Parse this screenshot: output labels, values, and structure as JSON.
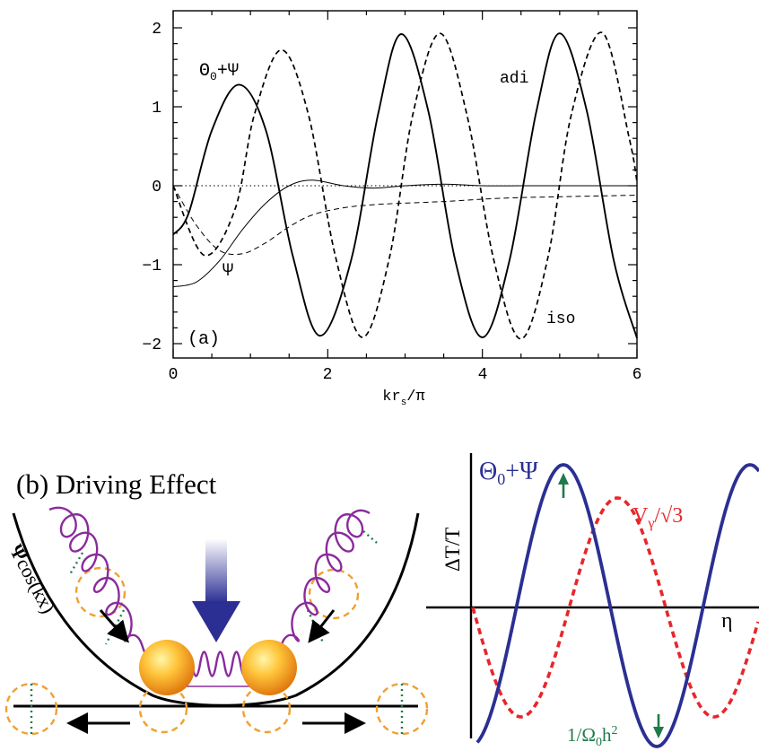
{
  "panel_a": {
    "chart_data": {
      "type": "line",
      "xlabel_main": "kr",
      "xlabel_sub": "s",
      "xlabel_tail": "/π",
      "xlim": [
        0,
        6
      ],
      "ylim": [
        -2.2,
        2.2
      ],
      "x_ticks": [
        "0",
        "2",
        "4",
        "6"
      ],
      "y_ticks": [
        "2",
        "1",
        "0",
        "−1",
        "−2"
      ],
      "panel_label": "(a)",
      "annotations": {
        "theta_main": "Θ",
        "theta_sub": "0",
        "theta_tail": "+Ψ",
        "psi": "Ψ",
        "adi": "adi",
        "iso": "iso"
      },
      "series": [
        {
          "style": "solid-thick",
          "x": [
            0,
            0.2,
            0.5,
            0.85,
            1.2,
            1.55,
            1.9,
            2.3,
            2.65,
            2.95,
            3.3,
            3.65,
            4.0,
            4.35,
            4.7,
            5.0,
            5.35,
            5.7,
            6.0
          ],
          "y": [
            -0.62,
            -0.35,
            0.7,
            1.28,
            0.7,
            -0.9,
            -1.9,
            -0.95,
            0.9,
            1.92,
            0.95,
            -0.95,
            -1.92,
            -0.95,
            0.95,
            1.93,
            0.95,
            -0.95,
            -1.93
          ]
        },
        {
          "style": "dashed-thick",
          "x": [
            0,
            0.4,
            0.8,
            1.05,
            1.4,
            1.75,
            2.1,
            2.45,
            2.8,
            3.1,
            3.45,
            3.8,
            4.15,
            4.5,
            4.85,
            5.15,
            5.55,
            5.9,
            6.0
          ],
          "y": [
            0,
            -0.88,
            -0.3,
            0.9,
            1.72,
            0.9,
            -0.9,
            -1.92,
            -0.9,
            0.9,
            1.93,
            0.9,
            -0.95,
            -1.94,
            -0.9,
            0.9,
            1.94,
            0.6,
            0.05
          ]
        },
        {
          "style": "solid-thin",
          "x": [
            0,
            0.3,
            0.6,
            0.9,
            1.2,
            1.5,
            1.8,
            2.2,
            2.6,
            3.0,
            3.5,
            4.0,
            4.5,
            5.0,
            5.5,
            6.0
          ],
          "y": [
            -1.28,
            -1.22,
            -0.95,
            -0.55,
            -0.22,
            0.0,
            0.07,
            0.0,
            -0.03,
            0.0,
            0.02,
            0.0,
            0.0,
            0.0,
            0.0,
            0.0
          ]
        },
        {
          "style": "dashed-thin",
          "x": [
            0,
            0.3,
            0.6,
            0.9,
            1.2,
            1.5,
            1.8,
            2.2,
            2.6,
            3.0,
            3.5,
            4.0,
            4.5,
            5.0,
            5.5,
            6.0
          ],
          "y": [
            0,
            -0.5,
            -0.82,
            -0.86,
            -0.72,
            -0.52,
            -0.37,
            -0.28,
            -0.24,
            -0.22,
            -0.2,
            -0.17,
            -0.15,
            -0.14,
            -0.13,
            -0.12
          ]
        },
        {
          "style": "dotted",
          "x": [
            0,
            6
          ],
          "y": [
            0,
            0
          ]
        }
      ]
    }
  },
  "panel_b": {
    "title": "(b) Driving Effect",
    "potential_label_psi": "Ψ",
    "potential_label_tail": "cos(kx)"
  },
  "panel_c": {
    "ylabel": "ΔT/T",
    "xlabel": "η",
    "theta_main": "Θ",
    "theta_sub": "0",
    "theta_tail": "+Ψ",
    "v_main": "V",
    "v_sub": "γ",
    "v_tail": "/√3",
    "omega_main": "1/Ω",
    "omega_sub": "0",
    "omega_tail": "h",
    "omega_sup": "2",
    "colors": {
      "theta": "#2b2f93",
      "velocity": "#e8262a",
      "arrow": "#1f7a4a"
    }
  }
}
